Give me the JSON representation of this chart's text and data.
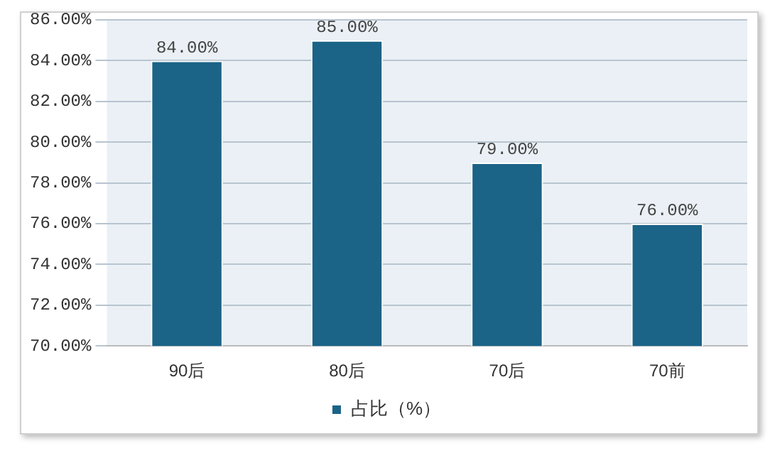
{
  "chart_data": {
    "type": "bar",
    "categories": [
      "90后",
      "80后",
      "70后",
      "70前"
    ],
    "series": [
      {
        "name": "占比（%）",
        "color": "#1b6387",
        "values": [
          84,
          85,
          79,
          76
        ],
        "value_labels": [
          "84.00%",
          "85.00%",
          "79.00%",
          "76.00%"
        ]
      }
    ],
    "ylim": [
      70,
      86
    ],
    "yticks": [
      {
        "value": 70,
        "label": "70.00%"
      },
      {
        "value": 72,
        "label": "72.00%"
      },
      {
        "value": 74,
        "label": "74.00%"
      },
      {
        "value": 76,
        "label": "76.00%"
      },
      {
        "value": 78,
        "label": "78.00%"
      },
      {
        "value": 80,
        "label": "80.00%"
      },
      {
        "value": 82,
        "label": "82.00%"
      },
      {
        "value": 84,
        "label": "84.00%"
      },
      {
        "value": 86,
        "label": "86.00%"
      }
    ],
    "grid": "y",
    "legend": "bottom"
  }
}
